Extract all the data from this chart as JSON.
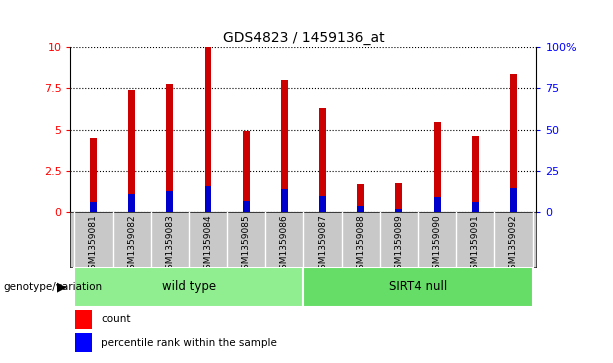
{
  "title": "GDS4823 / 1459136_at",
  "samples": [
    "GSM1359081",
    "GSM1359082",
    "GSM1359083",
    "GSM1359084",
    "GSM1359085",
    "GSM1359086",
    "GSM1359087",
    "GSM1359088",
    "GSM1359089",
    "GSM1359090",
    "GSM1359091",
    "GSM1359092"
  ],
  "count_values": [
    4.5,
    7.4,
    7.8,
    10.0,
    4.9,
    8.0,
    6.3,
    1.7,
    1.8,
    5.5,
    4.6,
    8.4
  ],
  "percentile_values": [
    0.6,
    1.1,
    1.3,
    1.6,
    0.7,
    1.4,
    1.0,
    0.4,
    0.2,
    0.9,
    0.6,
    1.5
  ],
  "groups": [
    {
      "label": "wild type",
      "start": 0,
      "end": 6,
      "color": "#90ee90"
    },
    {
      "label": "SIRT4 null",
      "start": 6,
      "end": 12,
      "color": "#66dd66"
    }
  ],
  "bar_color": "#cc0000",
  "percentile_color": "#0000cc",
  "bar_width": 0.18,
  "ylim_left": [
    0,
    10
  ],
  "ylim_right": [
    0,
    100
  ],
  "yticks_left": [
    0,
    2.5,
    5,
    7.5,
    10
  ],
  "yticks_right": [
    0,
    25,
    50,
    75,
    100
  ],
  "genotype_label": "genotype/variation",
  "legend_count": "count",
  "legend_percentile": "percentile rank within the sample",
  "bg_color": "#ffffff",
  "label_bg": "#c8c8c8"
}
